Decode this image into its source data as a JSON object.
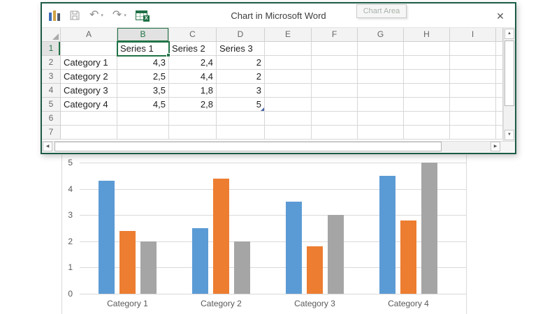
{
  "window": {
    "title": "Chart in Microsoft Word",
    "tooltip": "Chart Area"
  },
  "icons": {
    "undo": "↶",
    "redo": "↷",
    "caret": "▾",
    "close": "✕",
    "excel_badge": "X",
    "scroll_up": "▲",
    "scroll_down": "▼",
    "scroll_left": "◀",
    "scroll_right": "▶"
  },
  "colors": {
    "accent_green": "#217346",
    "window_border": "#1d5c46",
    "series1": "#5B9BD5",
    "series2": "#ED7D31",
    "series3": "#A5A5A5",
    "gridline": "#D9D9D9",
    "axis_text": "#595959"
  },
  "spreadsheet": {
    "column_headers": [
      "A",
      "B",
      "C",
      "D",
      "E",
      "F",
      "G",
      "H",
      "I"
    ],
    "selected_column": "B",
    "selected_row": 1,
    "selected_cell": "B1",
    "range_end_cell": "D5",
    "rows": [
      {
        "num": 1,
        "cells": [
          "",
          "Series 1",
          "Series 2",
          "Series 3"
        ]
      },
      {
        "num": 2,
        "cells": [
          "Category 1",
          "4,3",
          "2,4",
          "2"
        ]
      },
      {
        "num": 3,
        "cells": [
          "Category 2",
          "2,5",
          "4,4",
          "2"
        ]
      },
      {
        "num": 4,
        "cells": [
          "Category 3",
          "3,5",
          "1,8",
          "3"
        ]
      },
      {
        "num": 5,
        "cells": [
          "Category 4",
          "4,5",
          "2,8",
          "5"
        ]
      },
      {
        "num": 6,
        "cells": [
          "",
          "",
          "",
          ""
        ]
      },
      {
        "num": 7,
        "cells": [
          "",
          "",
          "",
          ""
        ]
      }
    ]
  },
  "chart_data": {
    "type": "bar",
    "title": "",
    "categories": [
      "Category 1",
      "Category 2",
      "Category 3",
      "Category 4"
    ],
    "series": [
      {
        "name": "Series 1",
        "color": "#5B9BD5",
        "values": [
          4.3,
          2.5,
          3.5,
          4.5
        ]
      },
      {
        "name": "Series 2",
        "color": "#ED7D31",
        "values": [
          2.4,
          4.4,
          1.8,
          2.8
        ]
      },
      {
        "name": "Series 3",
        "color": "#A5A5A5",
        "values": [
          2,
          2,
          3,
          5
        ]
      }
    ],
    "xlabel": "",
    "ylabel": "",
    "ylim": [
      0,
      5
    ],
    "yticks": [
      0,
      1,
      2,
      3,
      4,
      5
    ],
    "grid": true,
    "legend": "none"
  }
}
